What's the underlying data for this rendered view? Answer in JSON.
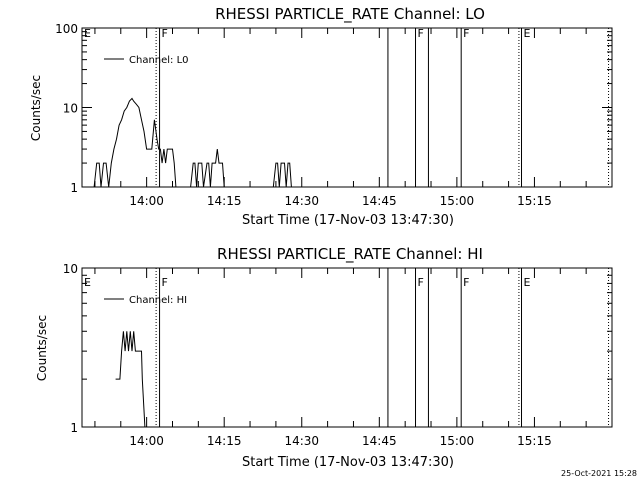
{
  "footer": {
    "date": "25-Oct-2021 15:28"
  },
  "chart_data": [
    {
      "type": "line",
      "title": "RHESSI PARTICLE_RATE Channel: LO",
      "xlabel": "Start Time (17-Nov-03 13:47:30)",
      "ylabel": "Counts/sec",
      "y_scale": "log",
      "xlim": [
        "13:47:30",
        "15:30:00"
      ],
      "ylim": [
        1,
        100
      ],
      "x_ticks": [
        "14:00",
        "14:15",
        "14:30",
        "14:45",
        "15:00",
        "15:15"
      ],
      "y_ticks": [
        "1",
        "10",
        "100"
      ],
      "legend": {
        "position": "top-left",
        "entries": [
          "Channel: L0"
        ]
      },
      "series": [
        {
          "name": "Channel: L0",
          "x": [
            "13:49:50",
            "13:50:20",
            "13:50:50",
            "13:51:10",
            "13:51:40",
            "13:52:10",
            "13:52:40",
            "13:53:10",
            "13:53:40",
            "13:54:10",
            "13:54:40",
            "13:55:10",
            "13:55:40",
            "13:56:10",
            "13:56:40",
            "13:57:10",
            "13:57:30",
            "13:58:00",
            "13:58:30",
            "13:59:00",
            "13:59:30",
            "14:00:00",
            "14:00:30",
            "14:01:00",
            "14:01:30",
            "14:02:00",
            "14:02:20",
            "14:02:40",
            "14:03:00",
            "14:03:20",
            "14:03:40",
            "14:04:00",
            "14:04:20",
            "14:04:40",
            "14:05:00",
            "14:05:20",
            "14:05:40",
            "14:06:00",
            "14:06:20",
            "14:06:40",
            "14:07:00",
            "14:08:30",
            "14:09:00",
            "14:09:20",
            "14:09:40",
            "14:10:00",
            "14:10:40",
            "14:11:00",
            "14:11:40",
            "14:12:00",
            "14:12:20",
            "14:12:40",
            "14:13:00",
            "14:13:20",
            "14:13:40",
            "14:14:00",
            "14:14:20",
            "14:14:40",
            "14:15:00",
            "14:24:30",
            "14:25:00",
            "14:25:20",
            "14:25:40",
            "14:26:00",
            "14:26:20",
            "14:26:40",
            "14:27:00",
            "14:27:20",
            "14:27:40",
            "14:28:00"
          ],
          "y": [
            1,
            2,
            2,
            1,
            2,
            2,
            1,
            2,
            3,
            4,
            6,
            7,
            9,
            10,
            12,
            13,
            12,
            11,
            10,
            7,
            5,
            3,
            3,
            3,
            7,
            4,
            3,
            3,
            2,
            3,
            2,
            3,
            3,
            3,
            3,
            2,
            1,
            1,
            1,
            1,
            1,
            1,
            2,
            2,
            1,
            2,
            2,
            1,
            2,
            2,
            1,
            2,
            2,
            2,
            3,
            2,
            2,
            2,
            1,
            1,
            2,
            2,
            1,
            2,
            2,
            2,
            1,
            2,
            2,
            1
          ]
        }
      ],
      "vlines_solid": [
        "14:02:30",
        "14:46:40",
        "14:52:00",
        "14:54:30",
        "15:00:50",
        "15:12:30"
      ],
      "vlines_dotted": [
        "14:01:50",
        "15:12:00",
        "15:29:20"
      ],
      "markers": [
        {
          "label": "E",
          "time": "13:47:30"
        },
        {
          "label": "F",
          "time": "14:02:30"
        },
        {
          "label": "F",
          "time": "14:52:00"
        },
        {
          "label": "F",
          "time": "15:00:50"
        },
        {
          "label": "E",
          "time": "15:12:30"
        }
      ]
    },
    {
      "type": "line",
      "title": "RHESSI PARTICLE_RATE Channel: HI",
      "xlabel": "Start Time (17-Nov-03 13:47:30)",
      "ylabel": "Counts/sec",
      "y_scale": "log",
      "xlim": [
        "13:47:30",
        "15:30:00"
      ],
      "ylim": [
        1,
        10
      ],
      "x_ticks": [
        "14:00",
        "14:15",
        "14:30",
        "14:45",
        "15:00",
        "15:15"
      ],
      "y_ticks": [
        "1",
        "10"
      ],
      "legend": {
        "position": "top-left",
        "entries": [
          "Channel: HI"
        ]
      },
      "series": [
        {
          "name": "Channel: HI",
          "x": [
            "13:54:00",
            "13:54:50",
            "13:55:10",
            "13:55:30",
            "13:55:50",
            "13:56:10",
            "13:56:30",
            "13:56:50",
            "13:57:10",
            "13:57:30",
            "13:57:50",
            "13:58:10",
            "13:58:30",
            "13:59:00",
            "13:59:10",
            "13:59:40"
          ],
          "y": [
            2,
            2,
            3,
            4,
            3,
            4,
            3,
            4,
            3,
            4,
            3,
            3,
            3,
            3,
            2,
            1
          ]
        }
      ],
      "vlines_solid": [
        "14:02:30",
        "14:46:40",
        "14:52:00",
        "14:54:30",
        "15:00:50",
        "15:12:30"
      ],
      "vlines_dotted": [
        "14:01:50",
        "15:12:00",
        "15:29:20"
      ],
      "markers": [
        {
          "label": "E",
          "time": "13:47:30"
        },
        {
          "label": "F",
          "time": "14:02:30"
        },
        {
          "label": "F",
          "time": "14:52:00"
        },
        {
          "label": "F",
          "time": "15:00:50"
        },
        {
          "label": "E",
          "time": "15:12:30"
        }
      ]
    }
  ]
}
